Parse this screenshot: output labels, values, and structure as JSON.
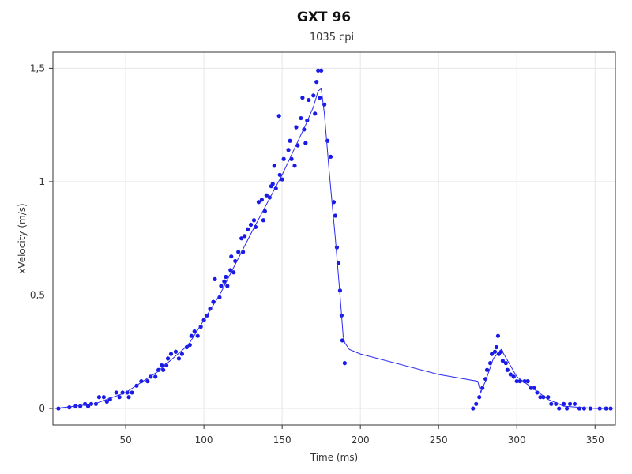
{
  "chart_data": {
    "type": "scatter",
    "title": "GXT 96",
    "subtitle": "1035 cpi",
    "x_label": "Time (ms)",
    "y_label": "xVelocity (m/s)",
    "xlim": [
      3.5,
      363
    ],
    "ylim": [
      -0.073,
      1.571
    ],
    "xticks": [
      50,
      100,
      150,
      200,
      250,
      300,
      350
    ],
    "yticks": [
      {
        "value": 0,
        "label": "0"
      },
      {
        "value": 0.5,
        "label": "0,5"
      },
      {
        "value": 1,
        "label": "1"
      },
      {
        "value": 1.5,
        "label": "1,5"
      }
    ],
    "grid": true,
    "series": [
      {
        "type": "scatter",
        "color": "#1a1ae6",
        "x": [
          7,
          14,
          18,
          21,
          24,
          26,
          28,
          31,
          33,
          36,
          38,
          40,
          44,
          46,
          48,
          51,
          52,
          54,
          57,
          60,
          64,
          66,
          69,
          71,
          73,
          74,
          76,
          77,
          79,
          82,
          84,
          86,
          89,
          91,
          92,
          94,
          96,
          98,
          100,
          102,
          104,
          106,
          107,
          110,
          111,
          113,
          114,
          115,
          117,
          117.5,
          119,
          120,
          122,
          124,
          125,
          126,
          128,
          130,
          132,
          133,
          135,
          137,
          138,
          139,
          140,
          142,
          143,
          144,
          145,
          146,
          148,
          148.5,
          150,
          151,
          154,
          155,
          156,
          158,
          159,
          160,
          162,
          163,
          164,
          165,
          166,
          167,
          170,
          171,
          172,
          173,
          175,
          174,
          177,
          179,
          181,
          183,
          184,
          185,
          186,
          187,
          188,
          188.5,
          190,
          272,
          274,
          276,
          278,
          280,
          281,
          283,
          284,
          286,
          287,
          288,
          288.5,
          290,
          291,
          293,
          294,
          296,
          298,
          300,
          302,
          305,
          307,
          309,
          311,
          313,
          315,
          317,
          320,
          322,
          325,
          327,
          330,
          332,
          334,
          337,
          340,
          343,
          347,
          353,
          357,
          360
        ],
        "values": [
          0,
          0.005,
          0.01,
          0.01,
          0.02,
          0.01,
          0.02,
          0.02,
          0.05,
          0.05,
          0.03,
          0.04,
          0.07,
          0.05,
          0.07,
          0.07,
          0.05,
          0.07,
          0.1,
          0.12,
          0.12,
          0.14,
          0.14,
          0.17,
          0.19,
          0.17,
          0.19,
          0.22,
          0.24,
          0.25,
          0.22,
          0.24,
          0.27,
          0.28,
          0.32,
          0.34,
          0.32,
          0.36,
          0.39,
          0.41,
          0.44,
          0.47,
          0.57,
          0.49,
          0.54,
          0.56,
          0.58,
          0.54,
          0.61,
          0.67,
          0.6,
          0.65,
          0.69,
          0.75,
          0.69,
          0.76,
          0.79,
          0.81,
          0.83,
          0.8,
          0.91,
          0.92,
          0.83,
          0.87,
          0.94,
          0.93,
          0.98,
          0.99,
          1.07,
          0.97,
          1.29,
          1.03,
          1.01,
          1.1,
          1.14,
          1.18,
          1.1,
          1.07,
          1.24,
          1.16,
          1.28,
          1.37,
          1.23,
          1.17,
          1.27,
          1.36,
          1.38,
          1.3,
          1.44,
          1.49,
          1.49,
          1.37,
          1.34,
          1.18,
          1.11,
          0.91,
          0.85,
          0.71,
          0.64,
          0.52,
          0.41,
          0.3,
          0.2,
          0,
          0.02,
          0.05,
          0.09,
          0.13,
          0.17,
          0.2,
          0.24,
          0.25,
          0.27,
          0.32,
          0.24,
          0.25,
          0.21,
          0.2,
          0.17,
          0.15,
          0.14,
          0.12,
          0.12,
          0.12,
          0.12,
          0.09,
          0.09,
          0.07,
          0.05,
          0.05,
          0.05,
          0.02,
          0.02,
          0,
          0.02,
          0,
          0.02,
          0.02,
          0,
          0,
          0,
          0,
          0,
          0
        ]
      },
      {
        "type": "line",
        "color": "#2a2af0",
        "x": [
          5,
          30,
          50,
          70,
          90,
          110,
          130,
          150,
          165,
          170,
          173,
          175,
          177,
          180,
          184,
          187,
          189,
          190,
          193,
          200,
          250,
          275,
          277,
          278,
          280,
          285,
          290,
          295,
          300,
          310,
          320,
          330,
          340,
          350,
          360
        ],
        "values": [
          0,
          0.02,
          0.07,
          0.16,
          0.28,
          0.5,
          0.77,
          1.03,
          1.25,
          1.33,
          1.4,
          1.41,
          1.3,
          1.05,
          0.75,
          0.5,
          0.32,
          0.29,
          0.26,
          0.24,
          0.15,
          0.12,
          0.07,
          0.09,
          0.12,
          0.22,
          0.26,
          0.2,
          0.14,
          0.09,
          0.04,
          0.01,
          0.005,
          0,
          0
        ]
      }
    ]
  }
}
